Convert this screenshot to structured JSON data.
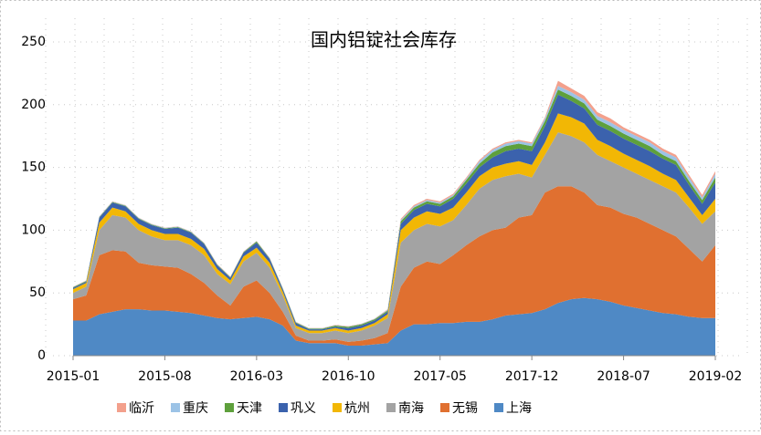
{
  "chart_data": {
    "type": "stacked_area",
    "title": "国内铝锭社会库存",
    "categories": [
      "2015-01",
      null,
      null,
      null,
      null,
      null,
      null,
      "2015-08",
      null,
      null,
      null,
      null,
      null,
      null,
      "2016-03",
      null,
      null,
      null,
      null,
      null,
      null,
      "2016-10",
      null,
      null,
      null,
      null,
      null,
      null,
      "2017-05",
      null,
      null,
      null,
      null,
      null,
      null,
      "2017-12",
      null,
      null,
      null,
      null,
      null,
      null,
      "2018-07",
      null,
      null,
      null,
      null,
      null,
      null,
      "2019-02"
    ],
    "series": [
      {
        "name": "上海",
        "color": "#4f89c5",
        "values": [
          28,
          28,
          33,
          35,
          37,
          37,
          36,
          36,
          35,
          34,
          32,
          30,
          29,
          30,
          31,
          29,
          24,
          12,
          10,
          10,
          10,
          8,
          8,
          9,
          10,
          20,
          25,
          25,
          26,
          26,
          27,
          27,
          29,
          32,
          33,
          34,
          37,
          42,
          45,
          46,
          45,
          43,
          40,
          38,
          36,
          34,
          33,
          31,
          30,
          30
        ]
      },
      {
        "name": "无锡",
        "color": "#e07030",
        "values": [
          17,
          20,
          47,
          49,
          46,
          37,
          36,
          35,
          35,
          31,
          26,
          18,
          11,
          25,
          29,
          21,
          11,
          4,
          2,
          2,
          3,
          3,
          4,
          5,
          8,
          35,
          45,
          50,
          47,
          54,
          61,
          68,
          71,
          70,
          77,
          78,
          93,
          93,
          90,
          84,
          75,
          75,
          73,
          72,
          69,
          66,
          62,
          54,
          45,
          58
        ]
      },
      {
        "name": "南海",
        "color": "#a3a3a3",
        "values": [
          5,
          7,
          20,
          28,
          27,
          26,
          23,
          21,
          22,
          23,
          22,
          17,
          17,
          20,
          22,
          20,
          13,
          6,
          6,
          6,
          7,
          7,
          8,
          10,
          12,
          35,
          30,
          30,
          30,
          28,
          32,
          38,
          40,
          41,
          35,
          30,
          30,
          43,
          40,
          40,
          40,
          37,
          37,
          35,
          35,
          35,
          35,
          33,
          30,
          27
        ]
      },
      {
        "name": "杭州",
        "color": "#f2b705",
        "values": [
          3,
          3,
          6,
          6,
          5,
          5,
          5,
          5,
          5,
          5,
          5,
          4,
          3,
          4,
          4,
          4,
          3,
          2,
          2,
          2,
          2,
          2,
          2,
          2,
          3,
          10,
          10,
          10,
          10,
          10,
          10,
          10,
          10,
          10,
          10,
          10,
          10,
          15,
          15,
          15,
          12,
          12,
          11,
          11,
          11,
          10,
          10,
          8,
          7,
          10
        ]
      },
      {
        "name": "巩义",
        "color": "#3b62ad",
        "values": [
          1,
          1,
          4,
          4,
          4,
          4,
          4,
          4,
          5,
          5,
          4,
          3,
          2,
          3,
          4,
          3,
          2,
          2,
          1,
          1,
          1,
          2,
          2,
          2,
          2,
          5,
          6,
          6,
          6,
          7,
          7,
          7,
          8,
          10,
          10,
          11,
          13,
          15,
          13,
          12,
          12,
          12,
          12,
          12,
          12,
          12,
          12,
          10,
          9,
          13
        ]
      },
      {
        "name": "天津",
        "color": "#5ea03c",
        "values": [
          0.5,
          0.5,
          0.5,
          0.5,
          0.5,
          0.5,
          0.5,
          0.5,
          0.5,
          0.5,
          0.5,
          0.5,
          0.5,
          0.5,
          1,
          0.5,
          0.5,
          0.5,
          0.5,
          0.5,
          1,
          1,
          1,
          1,
          1,
          2,
          2,
          2,
          2,
          2,
          3,
          3,
          4,
          4,
          4,
          4,
          4,
          4,
          4,
          4,
          4,
          4,
          4,
          4,
          4,
          3,
          3,
          3,
          3,
          4
        ]
      },
      {
        "name": "重庆",
        "color": "#9cc3e6",
        "values": [
          0.3,
          0.3,
          0.3,
          0.3,
          0.3,
          0.3,
          0.3,
          0.3,
          0.3,
          0.3,
          0.3,
          0.3,
          0.3,
          0.3,
          0.3,
          0.3,
          0.3,
          0.3,
          0.3,
          0.3,
          0.3,
          0.3,
          0.3,
          0.3,
          0.5,
          1,
          1,
          1,
          1,
          1,
          1,
          2,
          2,
          2,
          2,
          2,
          2,
          3,
          3,
          3,
          3,
          3,
          3,
          3,
          3,
          3,
          3,
          3,
          2,
          3
        ]
      },
      {
        "name": "临沂",
        "color": "#f3a08c",
        "values": [
          0.2,
          0.2,
          0.2,
          0.2,
          0.2,
          0.2,
          0.2,
          0.2,
          0.2,
          0.2,
          0.2,
          0.2,
          0.2,
          0.2,
          0.2,
          0.2,
          0.2,
          0.2,
          0.2,
          0.2,
          0.2,
          0.2,
          0.2,
          0.2,
          0.5,
          1,
          1,
          1,
          1,
          1,
          1,
          1,
          1,
          1,
          1,
          1,
          1,
          4,
          3,
          3,
          3,
          3,
          2,
          2,
          2,
          2,
          2,
          2,
          2,
          2
        ]
      }
    ],
    "ylim": [
      0,
      250
    ],
    "yticks": [
      0,
      50,
      100,
      150,
      200,
      250
    ],
    "grid": true,
    "legend": "bottom"
  }
}
